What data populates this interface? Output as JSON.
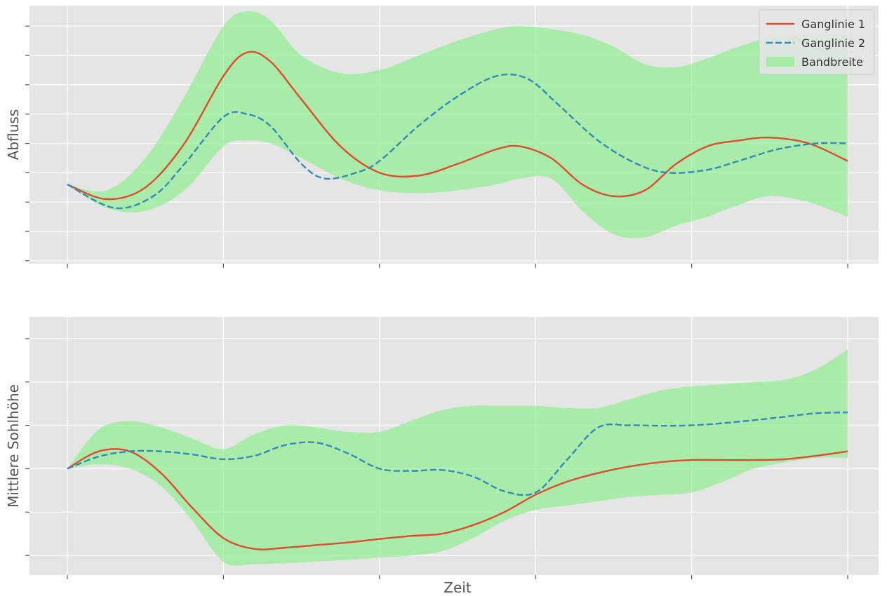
{
  "chart_data": [
    {
      "type": "line",
      "ylabel": "Abfluss",
      "xlabel": "",
      "xlim": [
        0,
        10
      ],
      "ylim": [
        0.9,
        9.7
      ],
      "x_ticks": [
        0,
        2,
        4,
        6,
        8,
        10
      ],
      "y_ticks": [
        1,
        2,
        3,
        4,
        5,
        6,
        7,
        8,
        9
      ],
      "grid": true,
      "tick_labels_visible": false,
      "legend": {
        "position": "top-right",
        "entries": [
          "Ganglinie 1",
          "Ganglinie 2",
          "Bandbreite"
        ]
      },
      "series": [
        {
          "name": "Ganglinie 1",
          "color": "#E24A33",
          "style": "solid",
          "x": [
            0,
            0.5,
            1,
            1.5,
            2,
            2.3,
            2.6,
            3,
            3.5,
            4,
            4.5,
            5,
            5.5,
            5.8,
            6.2,
            6.6,
            7,
            7.4,
            7.8,
            8.2,
            8.6,
            9,
            9.5,
            10
          ],
          "y": [
            3.6,
            3.1,
            3.5,
            5.0,
            7.3,
            8.1,
            7.8,
            6.5,
            4.9,
            4.0,
            3.9,
            4.3,
            4.8,
            4.9,
            4.5,
            3.6,
            3.2,
            3.4,
            4.3,
            4.9,
            5.1,
            5.2,
            5.0,
            4.4
          ]
        },
        {
          "name": "Ganglinie 2",
          "color": "#348ABD",
          "style": "dashed",
          "x": [
            0,
            0.6,
            1.1,
            1.5,
            2,
            2.3,
            2.6,
            3,
            3.3,
            3.7,
            4,
            4.5,
            5,
            5.5,
            5.9,
            6.3,
            6.8,
            7.3,
            7.7,
            8.2,
            8.6,
            9.1,
            9.6,
            10
          ],
          "y": [
            3.6,
            2.8,
            3.2,
            4.3,
            5.9,
            6.0,
            5.6,
            4.3,
            3.8,
            4.0,
            4.4,
            5.6,
            6.6,
            7.3,
            7.2,
            6.3,
            5.1,
            4.3,
            4.0,
            4.1,
            4.4,
            4.8,
            5.0,
            5.0
          ]
        }
      ],
      "band": {
        "name": "Bandbreite",
        "color": "#90EE90",
        "x": [
          0,
          0.5,
          1,
          1.5,
          2,
          2.3,
          2.6,
          3,
          3.5,
          4,
          4.5,
          5,
          5.5,
          5.8,
          6.2,
          6.6,
          7,
          7.4,
          7.8,
          8.2,
          8.6,
          9,
          9.5,
          10
        ],
        "lower": [
          3.6,
          2.8,
          2.7,
          3.4,
          4.9,
          5.1,
          5.0,
          4.5,
          3.8,
          3.4,
          3.3,
          3.4,
          3.6,
          3.8,
          3.8,
          2.7,
          1.9,
          1.8,
          2.2,
          2.5,
          2.9,
          3.2,
          3.0,
          2.5
        ],
        "upper": [
          3.6,
          3.4,
          4.5,
          6.6,
          9.0,
          9.5,
          9.2,
          8.0,
          7.4,
          7.5,
          8.0,
          8.5,
          8.9,
          9.0,
          8.9,
          8.7,
          8.3,
          7.7,
          7.6,
          7.9,
          8.3,
          8.6,
          8.7,
          8.7
        ]
      }
    },
    {
      "type": "line",
      "ylabel": "Mittlere Sohlhöhe",
      "xlabel": "Zeit",
      "xlim": [
        0,
        10
      ],
      "ylim": [
        0.55,
        6.5
      ],
      "x_ticks": [
        0,
        2,
        4,
        6,
        8,
        10
      ],
      "y_ticks": [
        1,
        2,
        3,
        4,
        5,
        6
      ],
      "grid": true,
      "tick_labels_visible": false,
      "series": [
        {
          "name": "Ganglinie 1",
          "color": "#E24A33",
          "style": "solid",
          "x": [
            0,
            0.4,
            0.8,
            1.2,
            1.6,
            2,
            2.4,
            2.8,
            3.2,
            3.6,
            4,
            4.4,
            4.8,
            5.2,
            5.6,
            6,
            6.4,
            6.8,
            7.2,
            7.6,
            8,
            8.4,
            8.8,
            9.2,
            9.6,
            10
          ],
          "y": [
            3.0,
            3.4,
            3.4,
            2.9,
            2.1,
            1.4,
            1.15,
            1.18,
            1.24,
            1.3,
            1.38,
            1.45,
            1.5,
            1.7,
            2.0,
            2.4,
            2.7,
            2.9,
            3.05,
            3.15,
            3.2,
            3.2,
            3.2,
            3.22,
            3.3,
            3.4
          ]
        },
        {
          "name": "Ganglinie 2",
          "color": "#348ABD",
          "style": "dashed",
          "x": [
            0,
            0.4,
            0.8,
            1.2,
            1.6,
            2,
            2.4,
            2.8,
            3.2,
            3.6,
            4,
            4.4,
            4.8,
            5.2,
            5.6,
            6,
            6.4,
            6.8,
            7.2,
            7.6,
            8,
            8.4,
            8.8,
            9.2,
            9.6,
            10
          ],
          "y": [
            3.0,
            3.28,
            3.4,
            3.4,
            3.33,
            3.22,
            3.3,
            3.55,
            3.6,
            3.35,
            3.0,
            2.95,
            2.97,
            2.82,
            2.48,
            2.45,
            3.2,
            3.95,
            4.0,
            3.99,
            4.0,
            4.05,
            4.12,
            4.2,
            4.28,
            4.3
          ]
        }
      ],
      "band": {
        "name": "Bandbreite",
        "color": "#90EE90",
        "x": [
          0,
          0.4,
          0.8,
          1.2,
          1.6,
          2,
          2.4,
          2.8,
          3.2,
          3.6,
          4,
          4.4,
          4.8,
          5.2,
          5.6,
          6,
          6.4,
          6.8,
          7.2,
          7.6,
          8,
          8.4,
          8.8,
          9.2,
          9.6,
          10
        ],
        "lower": [
          3.0,
          3.1,
          3.0,
          2.6,
          1.8,
          0.85,
          0.8,
          0.82,
          0.86,
          0.9,
          0.95,
          1.0,
          1.1,
          1.4,
          1.8,
          2.05,
          2.15,
          2.25,
          2.35,
          2.4,
          2.45,
          2.7,
          3.0,
          3.15,
          3.25,
          3.25
        ],
        "upper": [
          3.0,
          3.9,
          4.1,
          3.95,
          3.7,
          3.45,
          3.8,
          4.0,
          3.95,
          3.85,
          3.85,
          4.1,
          4.35,
          4.45,
          4.45,
          4.45,
          4.4,
          4.4,
          4.6,
          4.8,
          4.9,
          4.95,
          5.0,
          5.05,
          5.3,
          5.75
        ]
      }
    }
  ]
}
